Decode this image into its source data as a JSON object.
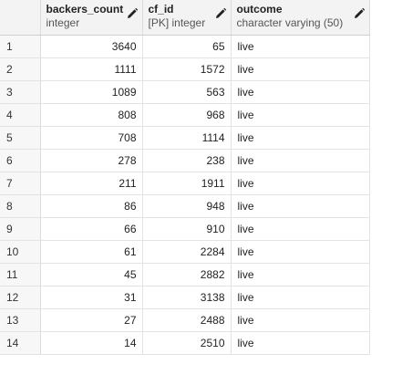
{
  "columns": [
    {
      "name": "backers_count",
      "type": "integer"
    },
    {
      "name": "cf_id",
      "type": "[PK] integer"
    },
    {
      "name": "outcome",
      "type": "character varying (50)"
    }
  ],
  "rows": [
    {
      "n": "1",
      "backers_count": "3640",
      "cf_id": "65",
      "outcome": "live"
    },
    {
      "n": "2",
      "backers_count": "1111",
      "cf_id": "1572",
      "outcome": "live"
    },
    {
      "n": "3",
      "backers_count": "1089",
      "cf_id": "563",
      "outcome": "live"
    },
    {
      "n": "4",
      "backers_count": "808",
      "cf_id": "968",
      "outcome": "live"
    },
    {
      "n": "5",
      "backers_count": "708",
      "cf_id": "1114",
      "outcome": "live"
    },
    {
      "n": "6",
      "backers_count": "278",
      "cf_id": "238",
      "outcome": "live"
    },
    {
      "n": "7",
      "backers_count": "211",
      "cf_id": "1911",
      "outcome": "live"
    },
    {
      "n": "8",
      "backers_count": "86",
      "cf_id": "948",
      "outcome": "live"
    },
    {
      "n": "9",
      "backers_count": "66",
      "cf_id": "910",
      "outcome": "live"
    },
    {
      "n": "10",
      "backers_count": "61",
      "cf_id": "2284",
      "outcome": "live"
    },
    {
      "n": "11",
      "backers_count": "45",
      "cf_id": "2882",
      "outcome": "live"
    },
    {
      "n": "12",
      "backers_count": "31",
      "cf_id": "3138",
      "outcome": "live"
    },
    {
      "n": "13",
      "backers_count": "27",
      "cf_id": "2488",
      "outcome": "live"
    },
    {
      "n": "14",
      "backers_count": "14",
      "cf_id": "2510",
      "outcome": "live"
    }
  ]
}
